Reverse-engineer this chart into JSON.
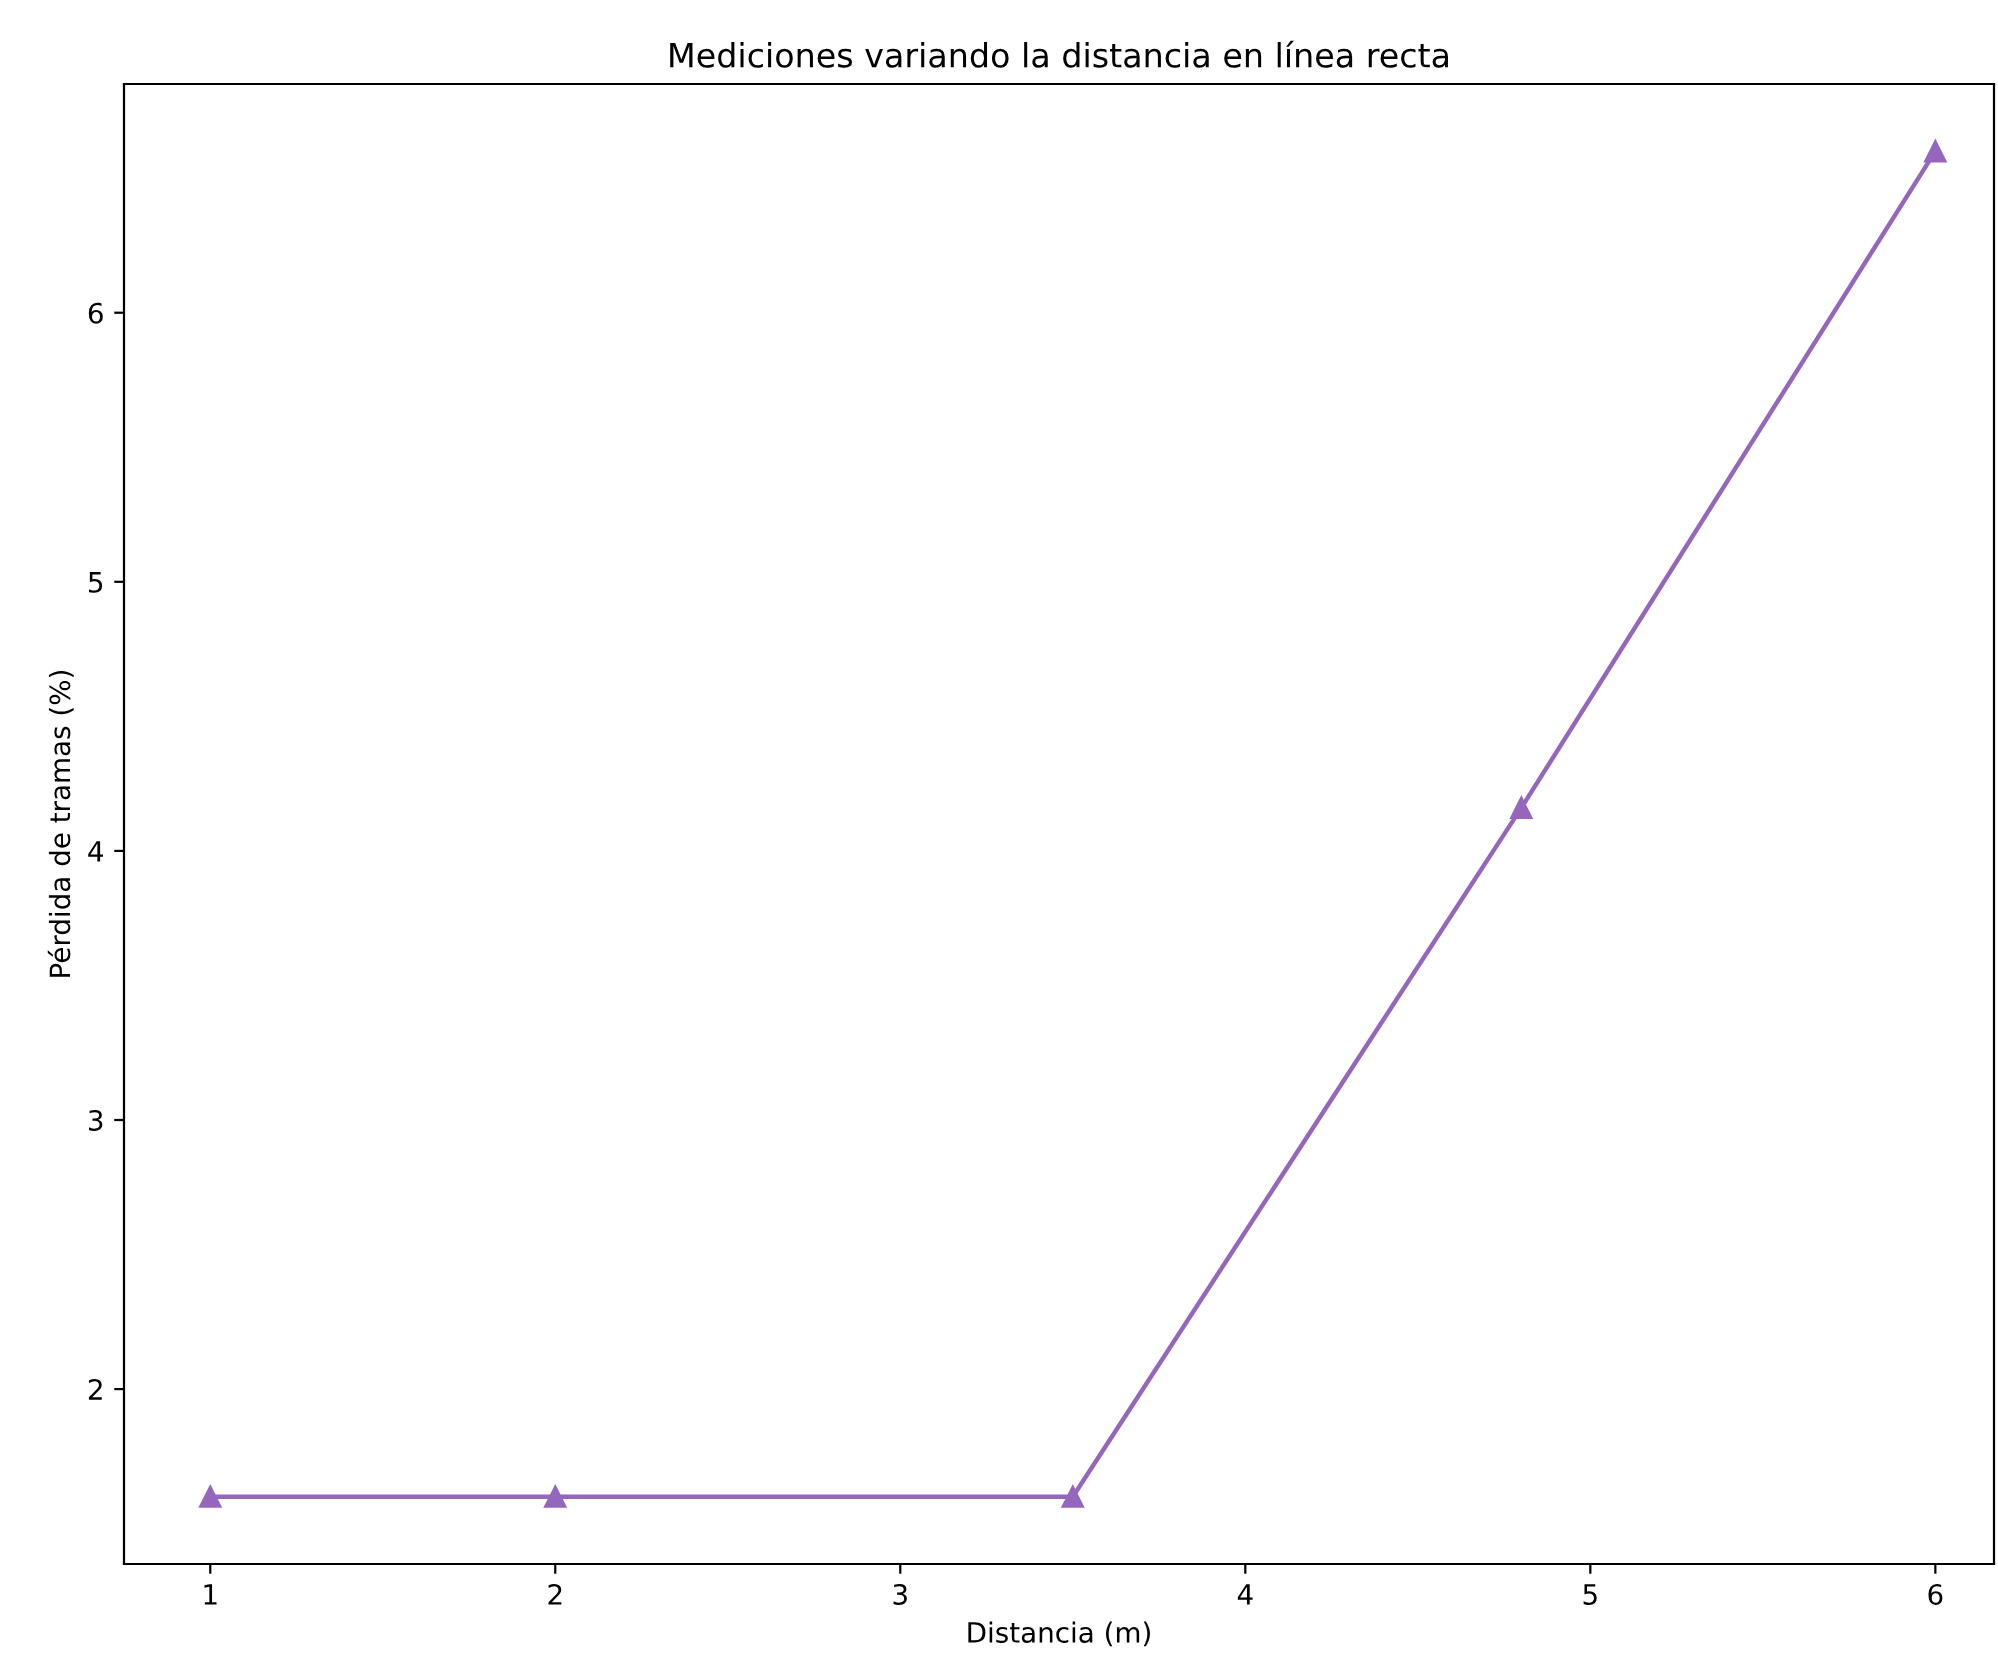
{
  "chart_data": {
    "type": "line",
    "title": "Mediciones variando la distancia en línea recta",
    "xlabel": "Distancia (m)",
    "ylabel": "Pérdida de tramas (%)",
    "x": [
      1,
      2,
      3.5,
      4.8,
      6
    ],
    "series": [
      {
        "color": "#9467bd",
        "values": [
          1.6,
          1.6,
          1.6,
          4.16,
          6.6
        ]
      }
    ],
    "marker": "triangle",
    "line_style": "solid",
    "grid": false,
    "xlim": [
      0.75,
      6.17
    ],
    "ylim": [
      1.35,
      6.85
    ],
    "xticks": [
      1,
      2,
      3,
      4,
      5,
      6
    ],
    "yticks": [
      2,
      3,
      4,
      5,
      6
    ]
  }
}
